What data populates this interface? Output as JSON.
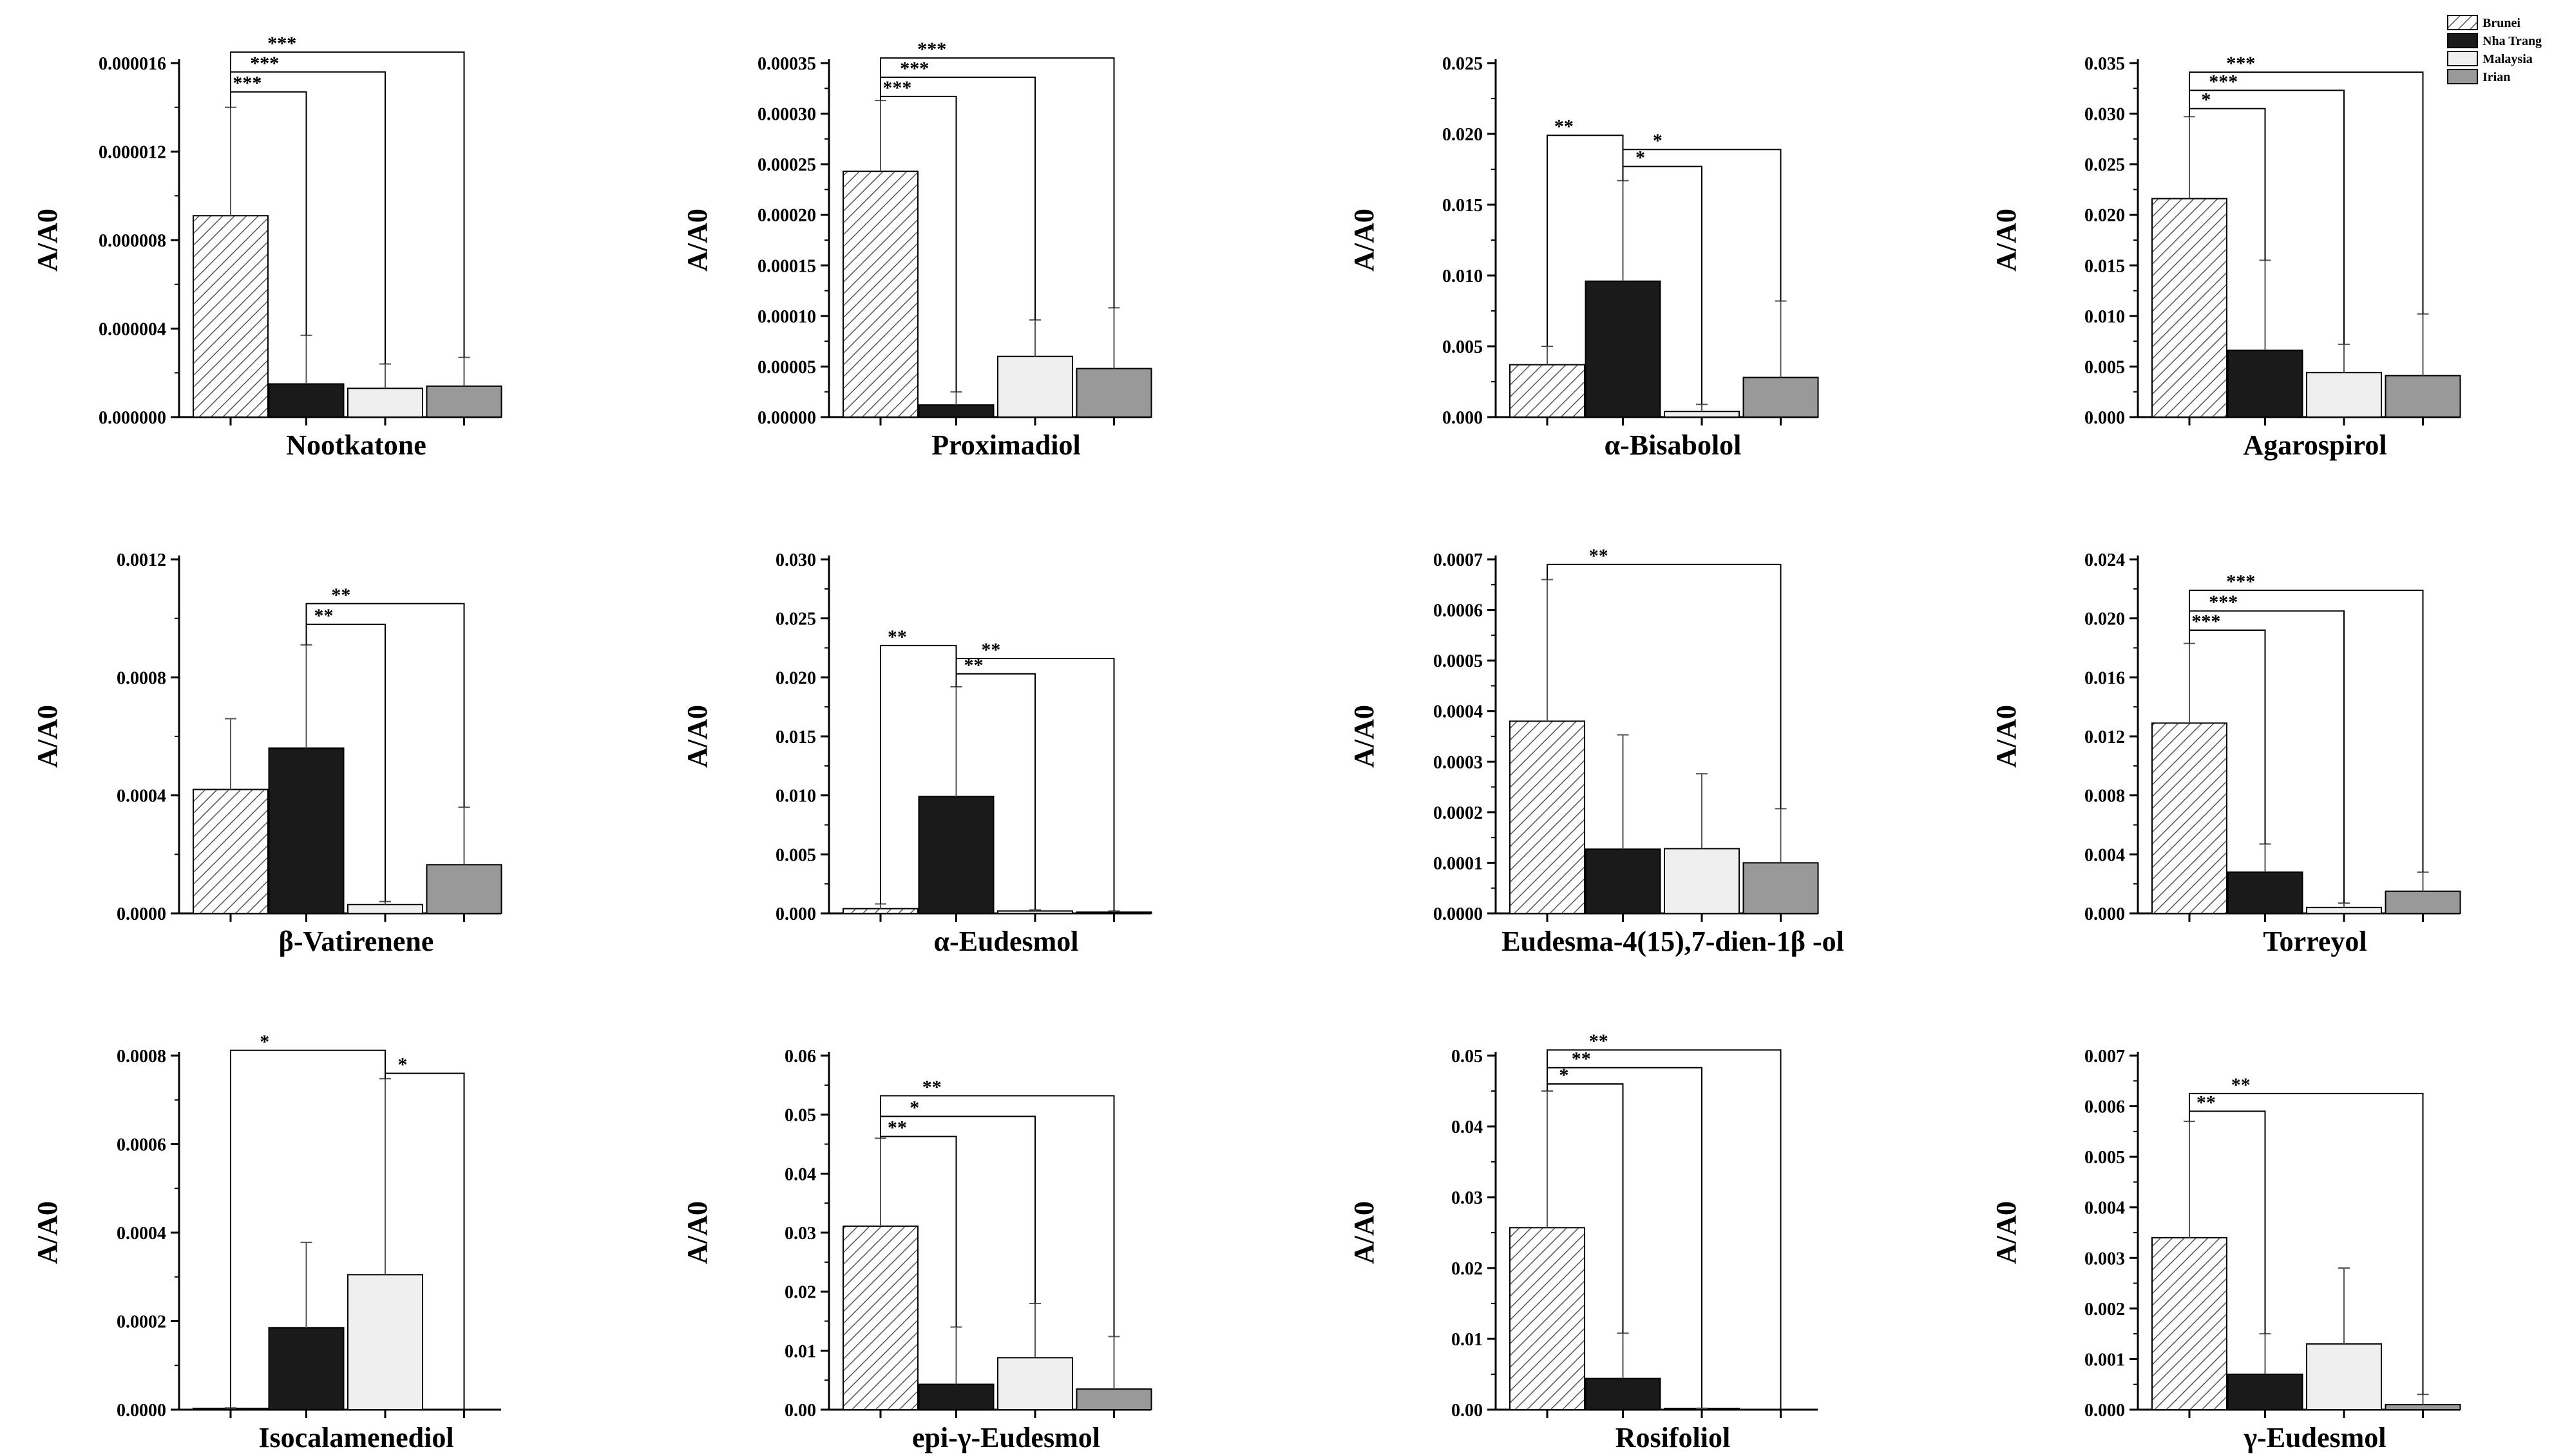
{
  "legend": {
    "entries": [
      {
        "name": "Brunei",
        "fill": "hatch"
      },
      {
        "name": "Nha Trang",
        "fill": "#1a1a1a"
      },
      {
        "name": "Malaysia",
        "fill": "#efefef"
      },
      {
        "name": "Irian",
        "fill": "#999999"
      }
    ],
    "placement": "top-right"
  },
  "chart_data": [
    {
      "type": "bar",
      "title": "Nootkatone",
      "ylabel": "A/A0",
      "ylim": [
        0,
        1.6e-05
      ],
      "yticks": [
        "0.000000",
        "0.000004",
        "0.000008",
        "0.000012",
        "0.000016"
      ],
      "tick_values": [
        0,
        4e-06,
        8e-06,
        1.2e-05,
        1.6e-05
      ],
      "categories": [
        "Brunei",
        "Nha Trang",
        "Malaysia",
        "Irian"
      ],
      "values": [
        9.1e-06,
        1.5e-06,
        1.3e-06,
        1.4e-06
      ],
      "errors": [
        4.9e-06,
        2.2e-06,
        1.1e-06,
        1.3e-06
      ],
      "brackets": [
        {
          "from": 0,
          "to": 1,
          "y": 1.47e-05,
          "label": "***"
        },
        {
          "from": 0,
          "to": 2,
          "y": 1.56e-05,
          "label": "***"
        },
        {
          "from": 0,
          "to": 3,
          "y": 1.65e-05,
          "label": "***"
        }
      ]
    },
    {
      "type": "bar",
      "title": "Proximadiol",
      "ylabel": "A/A0",
      "ylim": [
        0,
        0.00035
      ],
      "yticks": [
        "0.00000",
        "0.00005",
        "0.00010",
        "0.00015",
        "0.00020",
        "0.00025",
        "0.00030",
        "0.00035"
      ],
      "tick_values": [
        0,
        5e-05,
        0.0001,
        0.00015,
        0.0002,
        0.00025,
        0.0003,
        0.00035
      ],
      "categories": [
        "Brunei",
        "Nha Trang",
        "Malaysia",
        "Irian"
      ],
      "values": [
        0.000243,
        1.2e-05,
        6e-05,
        4.8e-05
      ],
      "errors": [
        7e-05,
        1.3e-05,
        3.6e-05,
        6e-05
      ],
      "brackets": [
        {
          "from": 0,
          "to": 1,
          "y": 0.000317,
          "label": "***"
        },
        {
          "from": 0,
          "to": 2,
          "y": 0.000336,
          "label": "***"
        },
        {
          "from": 0,
          "to": 3,
          "y": 0.000355,
          "label": "***"
        }
      ]
    },
    {
      "type": "bar",
      "title": "α-Bisabolol",
      "ylabel": "A/A0",
      "ylim": [
        0,
        0.025
      ],
      "yticks": [
        "0.000",
        "0.005",
        "0.010",
        "0.015",
        "0.020",
        "0.025"
      ],
      "tick_values": [
        0,
        0.005,
        0.01,
        0.015,
        0.02,
        0.025
      ],
      "categories": [
        "Brunei",
        "Nha Trang",
        "Malaysia",
        "Irian"
      ],
      "values": [
        0.0037,
        0.0096,
        0.0004,
        0.0028
      ],
      "errors": [
        0.0013,
        0.0071,
        0.0005,
        0.0054
      ],
      "brackets": [
        {
          "from": 0,
          "to": 1,
          "y": 0.0199,
          "label": "**"
        },
        {
          "from": 1,
          "to": 2,
          "y": 0.0177,
          "label": "*"
        },
        {
          "from": 1,
          "to": 3,
          "y": 0.0189,
          "label": "*"
        }
      ]
    },
    {
      "type": "bar",
      "title": "Agarospirol",
      "ylabel": "A/A0",
      "ylim": [
        0,
        0.035
      ],
      "yticks": [
        "0.000",
        "0.005",
        "0.010",
        "0.015",
        "0.020",
        "0.025",
        "0.030",
        "0.035"
      ],
      "tick_values": [
        0,
        0.005,
        0.01,
        0.015,
        0.02,
        0.025,
        0.03,
        0.035
      ],
      "categories": [
        "Brunei",
        "Nha Trang",
        "Malaysia",
        "Irian"
      ],
      "values": [
        0.0216,
        0.0066,
        0.0044,
        0.0041
      ],
      "errors": [
        0.0081,
        0.0089,
        0.0028,
        0.0061
      ],
      "brackets": [
        {
          "from": 0,
          "to": 1,
          "y": 0.0305,
          "label": "*"
        },
        {
          "from": 0,
          "to": 2,
          "y": 0.0323,
          "label": "***"
        },
        {
          "from": 0,
          "to": 3,
          "y": 0.0341,
          "label": "***"
        }
      ]
    },
    {
      "type": "bar",
      "title": "β-Vatirenene",
      "ylabel": "A/A0",
      "ylim": [
        0,
        0.0012
      ],
      "yticks": [
        "0.0000",
        "0.0004",
        "0.0008",
        "0.0012"
      ],
      "tick_values": [
        0,
        0.0004,
        0.0008,
        0.0012
      ],
      "categories": [
        "Brunei",
        "Nha Trang",
        "Malaysia",
        "Irian"
      ],
      "values": [
        0.00042,
        0.00056,
        3e-05,
        0.000165
      ],
      "errors": [
        0.00024,
        0.00035,
        1e-05,
        0.000195
      ],
      "brackets": [
        {
          "from": 1,
          "to": 2,
          "y": 0.00098,
          "label": "**"
        },
        {
          "from": 1,
          "to": 3,
          "y": 0.00105,
          "label": "**"
        }
      ]
    },
    {
      "type": "bar",
      "title": "α-Eudesmol",
      "ylabel": "A/A0",
      "ylim": [
        0,
        0.03
      ],
      "yticks": [
        "0.000",
        "0.005",
        "0.010",
        "0.015",
        "0.020",
        "0.025",
        "0.030"
      ],
      "tick_values": [
        0,
        0.005,
        0.01,
        0.015,
        0.02,
        0.025,
        0.03
      ],
      "categories": [
        "Brunei",
        "Nha Trang",
        "Malaysia",
        "Irian"
      ],
      "values": [
        0.0004,
        0.0099,
        0.0002,
        0.0001
      ],
      "errors": [
        0.0004,
        0.0093,
        0.0001,
        0.0001
      ],
      "brackets": [
        {
          "from": 0,
          "to": 1,
          "y": 0.0227,
          "label": "**"
        },
        {
          "from": 1,
          "to": 2,
          "y": 0.0203,
          "label": "**"
        },
        {
          "from": 1,
          "to": 3,
          "y": 0.0216,
          "label": "**"
        }
      ]
    },
    {
      "type": "bar",
      "title": "Eudesma-4(15),7-dien-1β -ol",
      "ylabel": "A/A0",
      "ylim": [
        0,
        0.0007
      ],
      "yticks": [
        "0.0000",
        "0.0001",
        "0.0002",
        "0.0003",
        "0.0004",
        "0.0005",
        "0.0006",
        "0.0007"
      ],
      "tick_values": [
        0,
        0.0001,
        0.0002,
        0.0003,
        0.0004,
        0.0005,
        0.0006,
        0.0007
      ],
      "categories": [
        "Brunei",
        "Nha Trang",
        "Malaysia",
        "Irian"
      ],
      "values": [
        0.00038,
        0.000127,
        0.000128,
        0.0001
      ],
      "errors": [
        0.00028,
        0.000226,
        0.000148,
        0.000107
      ],
      "brackets": [
        {
          "from": 0,
          "to": 3,
          "y": 0.00069,
          "label": "**"
        }
      ]
    },
    {
      "type": "bar",
      "title": "Torreyol",
      "ylabel": "A/A0",
      "ylim": [
        0,
        0.024
      ],
      "yticks": [
        "0.000",
        "0.004",
        "0.008",
        "0.012",
        "0.016",
        "0.020",
        "0.024"
      ],
      "tick_values": [
        0,
        0.004,
        0.008,
        0.012,
        0.016,
        0.02,
        0.024
      ],
      "categories": [
        "Brunei",
        "Nha Trang",
        "Malaysia",
        "Irian"
      ],
      "values": [
        0.0129,
        0.0028,
        0.0004,
        0.0015
      ],
      "errors": [
        0.0054,
        0.0019,
        0.0003,
        0.0013
      ],
      "brackets": [
        {
          "from": 0,
          "to": 1,
          "y": 0.0192,
          "label": "***"
        },
        {
          "from": 0,
          "to": 2,
          "y": 0.0205,
          "label": "***"
        },
        {
          "from": 0,
          "to": 3,
          "y": 0.0219,
          "label": "***"
        }
      ]
    },
    {
      "type": "bar",
      "title": "Isocalamenediol",
      "ylabel": "A/A0",
      "ylim": [
        0,
        0.0008
      ],
      "yticks": [
        "0.0000",
        "0.0002",
        "0.0004",
        "0.0006",
        "0.0008"
      ],
      "tick_values": [
        0,
        0.0002,
        0.0004,
        0.0006,
        0.0008
      ],
      "categories": [
        "Brunei",
        "Nha Trang",
        "Malaysia",
        "Irian"
      ],
      "values": [
        3e-06,
        0.000185,
        0.000305,
        0.0
      ],
      "errors": [
        1e-06,
        0.000193,
        0.000443,
        0.0
      ],
      "brackets": [
        {
          "from": 0,
          "to": 2,
          "y": 0.000812,
          "label": "*"
        },
        {
          "from": 2,
          "to": 3,
          "y": 0.00076,
          "label": "*"
        }
      ]
    },
    {
      "type": "bar",
      "title": "epi-γ-Eudesmol",
      "ylabel": "A/A0",
      "ylim": [
        0,
        0.06
      ],
      "yticks": [
        "0.00",
        "0.01",
        "0.02",
        "0.03",
        "0.04",
        "0.05",
        "0.06"
      ],
      "tick_values": [
        0,
        0.01,
        0.02,
        0.03,
        0.04,
        0.05,
        0.06
      ],
      "categories": [
        "Brunei",
        "Nha Trang",
        "Malaysia",
        "Irian"
      ],
      "values": [
        0.0311,
        0.0043,
        0.0088,
        0.0035
      ],
      "errors": [
        0.0149,
        0.0097,
        0.0092,
        0.0089
      ],
      "brackets": [
        {
          "from": 0,
          "to": 1,
          "y": 0.0463,
          "label": "**"
        },
        {
          "from": 0,
          "to": 2,
          "y": 0.0497,
          "label": "*"
        },
        {
          "from": 0,
          "to": 3,
          "y": 0.0532,
          "label": "**"
        }
      ]
    },
    {
      "type": "bar",
      "title": "Rosifoliol",
      "ylabel": "A/A0",
      "ylim": [
        0,
        0.05
      ],
      "yticks": [
        "0.00",
        "0.01",
        "0.02",
        "0.03",
        "0.04",
        "0.05"
      ],
      "tick_values": [
        0,
        0.01,
        0.02,
        0.03,
        0.04,
        0.05
      ],
      "categories": [
        "Brunei",
        "Nha Trang",
        "Malaysia",
        "Irian"
      ],
      "values": [
        0.0257,
        0.0044,
        0.0001,
        0.0
      ],
      "errors": [
        0.0193,
        0.0064,
        0.0001,
        0.0
      ],
      "brackets": [
        {
          "from": 0,
          "to": 1,
          "y": 0.046,
          "label": "*"
        },
        {
          "from": 0,
          "to": 2,
          "y": 0.0483,
          "label": "**"
        },
        {
          "from": 0,
          "to": 3,
          "y": 0.0508,
          "label": "**"
        }
      ]
    },
    {
      "type": "bar",
      "title": "γ-Eudesmol",
      "ylabel": "A/A0",
      "ylim": [
        0,
        0.007
      ],
      "yticks": [
        "0.000",
        "0.001",
        "0.002",
        "0.003",
        "0.004",
        "0.005",
        "0.006",
        "0.007"
      ],
      "tick_values": [
        0,
        0.001,
        0.002,
        0.003,
        0.004,
        0.005,
        0.006,
        0.007
      ],
      "categories": [
        "Brunei",
        "Nha Trang",
        "Malaysia",
        "Irian"
      ],
      "values": [
        0.0034,
        0.0007,
        0.0013,
        0.0001
      ],
      "errors": [
        0.0023,
        0.0008,
        0.0015,
        0.0002
      ],
      "brackets": [
        {
          "from": 0,
          "to": 1,
          "y": 0.0059,
          "label": "**"
        },
        {
          "from": 0,
          "to": 3,
          "y": 0.00625,
          "label": "**"
        }
      ]
    }
  ]
}
